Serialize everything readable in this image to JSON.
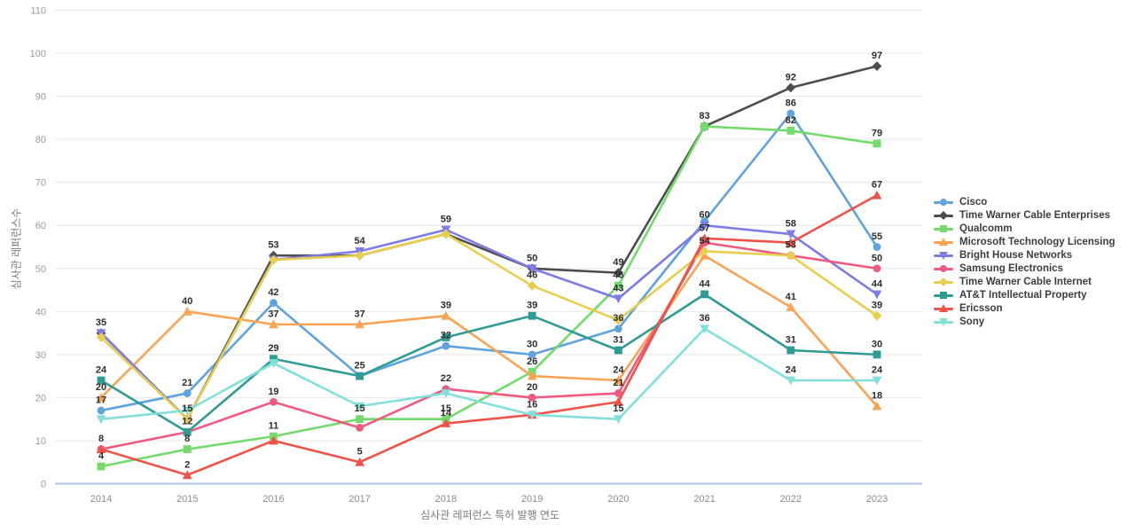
{
  "chart_data": {
    "type": "line",
    "title": "",
    "xlabel": "심사관 레퍼런스 특허 발행 연도",
    "ylabel": "심사관 레퍼런스수",
    "x": [
      "2014",
      "2015",
      "2016",
      "2017",
      "2018",
      "2019",
      "2020",
      "2021",
      "2022",
      "2023"
    ],
    "ylim": [
      0,
      110
    ],
    "ytick_step": 10,
    "grid": "horizontal-only",
    "legend_position": "right",
    "axis_line_color": "#aac7e8",
    "gridline_color": "#e8e8e8",
    "tick_label_color": "#999999",
    "data_label_color": "#2d2d2d",
    "series": [
      {
        "name": "Cisco",
        "color": "#5FA2DC",
        "marker": "circle",
        "values": [
          17,
          21,
          42,
          25,
          32,
          30,
          36,
          61,
          86,
          55
        ],
        "hidden_labels": [
          "2017",
          "2021"
        ]
      },
      {
        "name": "Time Warner Cable Enterprises",
        "color": "#4d4d4d",
        "marker": "diamond",
        "values": [
          35,
          15,
          53,
          53,
          58,
          50,
          49,
          83,
          92,
          97
        ],
        "hidden_labels": [
          "2014",
          "2015",
          "2017",
          "2018"
        ]
      },
      {
        "name": "Qualcomm",
        "color": "#72DB6B",
        "marker": "square",
        "values": [
          4,
          8,
          11,
          15,
          15,
          26,
          46,
          83,
          82,
          79
        ],
        "hidden_labels": [
          "2021"
        ]
      },
      {
        "name": "Microsoft Technology Licensing",
        "color": "#F9A353",
        "marker": "triangle",
        "values": [
          20,
          40,
          37,
          37,
          39,
          25,
          24,
          53,
          41,
          18
        ],
        "hidden_labels": [
          "2019",
          "2021"
        ]
      },
      {
        "name": "Bright House Networks",
        "color": "#7C7CE4",
        "marker": "triangle-down",
        "values": [
          35,
          15,
          52,
          54,
          59,
          50,
          43,
          60,
          58,
          44
        ],
        "hidden_labels": [
          "2015",
          "2016",
          "2019"
        ]
      },
      {
        "name": "Samsung Electronics",
        "color": "#EE5A80",
        "marker": "circle",
        "values": [
          8,
          12,
          19,
          13,
          22,
          20,
          21,
          56,
          53,
          50
        ],
        "hidden_labels": [
          "2015",
          "2017",
          "2021"
        ]
      },
      {
        "name": "Time Warner Cable Internet",
        "color": "#E7CE4E",
        "marker": "diamond",
        "values": [
          34,
          15,
          52,
          53,
          58,
          46,
          38,
          54,
          53,
          39
        ],
        "hidden_labels": [
          "2014",
          "2016",
          "2017",
          "2018",
          "2020",
          "2022"
        ]
      },
      {
        "name": "AT&T Intellectual Property",
        "color": "#2E9C92",
        "marker": "square",
        "values": [
          24,
          12,
          29,
          25,
          34,
          39,
          31,
          44,
          31,
          30
        ],
        "hidden_labels": [
          "2018"
        ]
      },
      {
        "name": "Ericsson",
        "color": "#EF5348",
        "marker": "triangle",
        "values": [
          8,
          2,
          10,
          5,
          14,
          16,
          19,
          57,
          56,
          67
        ],
        "hidden_labels": [
          "2014",
          "2016",
          "2019",
          "2020",
          "2022"
        ]
      },
      {
        "name": "Sony",
        "color": "#82DFD9",
        "marker": "triangle-down",
        "values": [
          15,
          17,
          28,
          18,
          21,
          16,
          15,
          36,
          24,
          24
        ],
        "hidden_labels": [
          "2014",
          "2015",
          "2016",
          "2017",
          "2018"
        ]
      }
    ]
  }
}
